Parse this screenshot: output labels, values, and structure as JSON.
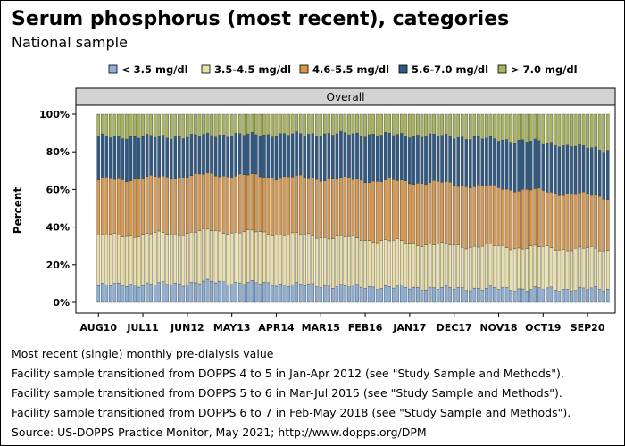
{
  "title": "Serum phosphorus (most recent), categories",
  "subtitle": "National sample",
  "panel_label": "Overall",
  "notes": [
    "Most recent (single) monthly pre-dialysis value",
    "Facility sample transitioned from DOPPS 4 to 5 in Jan-Apr 2012 (see \"Study Sample and Methods\").",
    "Facility sample transitioned from DOPPS 5 to 6 in Mar-Jul 2015 (see \"Study Sample and Methods\").",
    "Facility sample transitioned from DOPPS 6 to 7 in Feb-May 2018 (see \"Study Sample and Methods\").",
    "Source: US-DOPPS Practice Monitor, May 2021; http://www.dopps.org/DPM"
  ],
  "chart_data": {
    "type": "bar",
    "stacked": true,
    "ylabel": "Percent",
    "ylim": [
      0,
      100
    ],
    "yticks": [
      0,
      20,
      40,
      60,
      80,
      100
    ],
    "ytick_labels": [
      "0%",
      "20%",
      "40%",
      "60%",
      "80%",
      "100%"
    ],
    "x_start": "2010-08",
    "x_end": "2021-02",
    "xtick_labels": [
      "AUG10",
      "JUL11",
      "JUN12",
      "MAY13",
      "APR14",
      "MAR15",
      "FEB16",
      "JAN17",
      "DEC17",
      "NOV18",
      "OCT19",
      "SEP20"
    ],
    "legend_position": "top",
    "series": [
      {
        "name": "< 3.5 mg/dl",
        "color": "#8db0d8",
        "anchors": [
          [
            0,
            9
          ],
          [
            22,
            10
          ],
          [
            28,
            11
          ],
          [
            40,
            10
          ],
          [
            60,
            8.5
          ],
          [
            84,
            7.5
          ],
          [
            110,
            7
          ],
          [
            126,
            7
          ]
        ]
      },
      {
        "name": "3.5-4.5 mg/dl",
        "color": "#eadfa7",
        "anchors": [
          [
            0,
            26
          ],
          [
            22,
            27
          ],
          [
            28,
            27
          ],
          [
            40,
            27
          ],
          [
            60,
            26
          ],
          [
            84,
            23
          ],
          [
            110,
            22
          ],
          [
            126,
            21
          ]
        ]
      },
      {
        "name": "4.6-5.5 mg/dl",
        "color": "#d99a4f",
        "anchors": [
          [
            0,
            30
          ],
          [
            22,
            30
          ],
          [
            28,
            30
          ],
          [
            40,
            30
          ],
          [
            60,
            31
          ],
          [
            84,
            33
          ],
          [
            110,
            30
          ],
          [
            126,
            28
          ]
        ]
      },
      {
        "name": "5.6-7.0 mg/dl",
        "color": "#2f5a85",
        "anchors": [
          [
            0,
            23
          ],
          [
            22,
            21
          ],
          [
            28,
            21
          ],
          [
            40,
            22
          ],
          [
            60,
            24
          ],
          [
            84,
            25
          ],
          [
            110,
            26
          ],
          [
            126,
            25
          ]
        ]
      },
      {
        "name": "> 7.0 mg/dl",
        "color": "#a8b55c",
        "anchors": [
          [
            0,
            12
          ],
          [
            22,
            12
          ],
          [
            28,
            11
          ],
          [
            40,
            11
          ],
          [
            60,
            10.5
          ],
          [
            84,
            11.5
          ],
          [
            110,
            15
          ],
          [
            126,
            19
          ]
        ]
      }
    ]
  }
}
